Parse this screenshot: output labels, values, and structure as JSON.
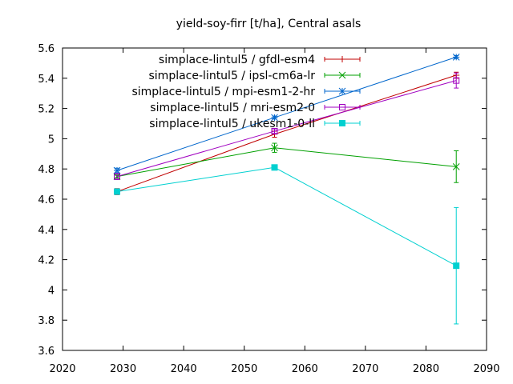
{
  "chart_data": {
    "type": "line",
    "title": "yield-soy-firr [t/ha], Central asals",
    "xlabel": "",
    "ylabel": "",
    "xlim": [
      2020,
      2090
    ],
    "ylim": [
      3.6,
      5.6
    ],
    "xticks": [
      2020,
      2030,
      2040,
      2050,
      2060,
      2070,
      2080,
      2090
    ],
    "yticks": [
      3.6,
      3.8,
      4.0,
      4.2,
      4.4,
      4.6,
      4.8,
      5.0,
      5.2,
      5.4,
      5.6
    ],
    "xtick_labels": [
      "2020",
      "2030",
      "2040",
      "2050",
      "2060",
      "2070",
      "2080",
      "2090"
    ],
    "ytick_labels": [
      "3.6",
      "3.8",
      "4",
      "4.2",
      "4.4",
      "4.6",
      "4.8",
      "5",
      "5.2",
      "5.4",
      "5.6"
    ],
    "grid": false,
    "legend_position": "top-right",
    "x": [
      2029,
      2055,
      2085
    ],
    "series": [
      {
        "name": "simplace-lintul5 / gfdl-esm4",
        "color": "#c00000",
        "marker": "plus",
        "values": [
          4.65,
          5.03,
          5.42
        ],
        "errors": [
          0.02,
          0.02,
          0.02
        ]
      },
      {
        "name": "simplace-lintul5 / ipsl-cm6a-lr",
        "color": "#00a000",
        "marker": "cross",
        "values": [
          4.75,
          4.94,
          4.815
        ],
        "errors": [
          0.01,
          0.03,
          0.105
        ]
      },
      {
        "name": "simplace-lintul5 / mpi-esm1-2-hr",
        "color": "#0066cc",
        "marker": "star",
        "values": [
          4.79,
          5.14,
          5.54
        ],
        "errors": [
          0.015,
          0.01,
          0.01
        ]
      },
      {
        "name": "simplace-lintul5 / mri-esm2-0",
        "color": "#a000c0",
        "marker": "box",
        "values": [
          4.75,
          5.05,
          5.385
        ],
        "errors": [
          0.02,
          0.015,
          0.05
        ]
      },
      {
        "name": "simplace-lintul5 / ukesm1-0-ll",
        "color": "#00d0d0",
        "marker": "filledbox",
        "values": [
          4.65,
          4.81,
          4.16
        ],
        "errors": [
          0.01,
          0.015,
          0.385
        ]
      }
    ]
  }
}
